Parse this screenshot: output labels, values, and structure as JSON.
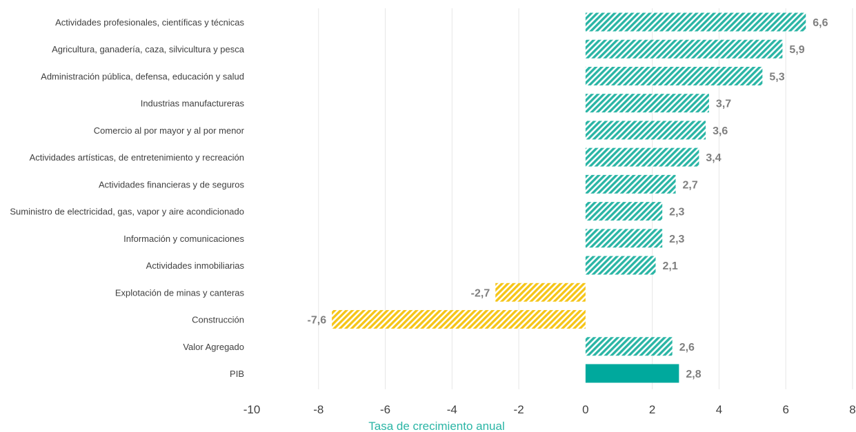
{
  "chart_data": {
    "type": "bar",
    "orientation": "horizontal",
    "categories": [
      "Actividades profesionales, científicas y técnicas",
      "Agricultura, ganadería, caza, silvicultura y pesca",
      "Administración pública, defensa, educación y salud",
      "Industrias manufactureras",
      "Comercio al por mayor y al por menor",
      "Actividades artísticas, de entretenimiento y recreación",
      "Actividades financieras y de seguros",
      "Suministro de electricidad, gas, vapor y aire acondicionado",
      "Información y comunicaciones",
      "Actividades inmobiliarias",
      "Explotación de minas y canteras",
      "Construcción",
      "Valor Agregado",
      "PIB"
    ],
    "values": [
      6.6,
      5.9,
      5.3,
      3.7,
      3.6,
      3.4,
      2.7,
      2.3,
      2.3,
      2.1,
      -2.7,
      -7.6,
      2.6,
      2.8
    ],
    "value_labels": [
      "6,6",
      "5,9",
      "5,3",
      "3,7",
      "3,6",
      "3,4",
      "2,7",
      "2,3",
      "2,3",
      "2,1",
      "-2,7",
      "-7,6",
      "2,6",
      "2,8"
    ],
    "xlabel": "Tasa de crecimiento anual",
    "xlim": [
      -10,
      8
    ],
    "xticks": [
      -10,
      -8,
      -6,
      -4,
      -2,
      0,
      2,
      4,
      6,
      8
    ],
    "xtick_labels": [
      "-10",
      "-8",
      "-6",
      "-4",
      "-2",
      "0",
      "2",
      "4",
      "6",
      "8"
    ],
    "grid": "vertical",
    "legend": "none",
    "colors": {
      "positive": "#2ab5a5",
      "negative": "#f5c518",
      "total": "#00a99d",
      "axis_title": "#2ab5a5",
      "grid": "#e6e6e6"
    },
    "bar_fill": [
      "hatched",
      "hatched",
      "hatched",
      "hatched",
      "hatched",
      "hatched",
      "hatched",
      "hatched",
      "hatched",
      "hatched",
      "hatched",
      "hatched",
      "hatched",
      "solid"
    ]
  }
}
